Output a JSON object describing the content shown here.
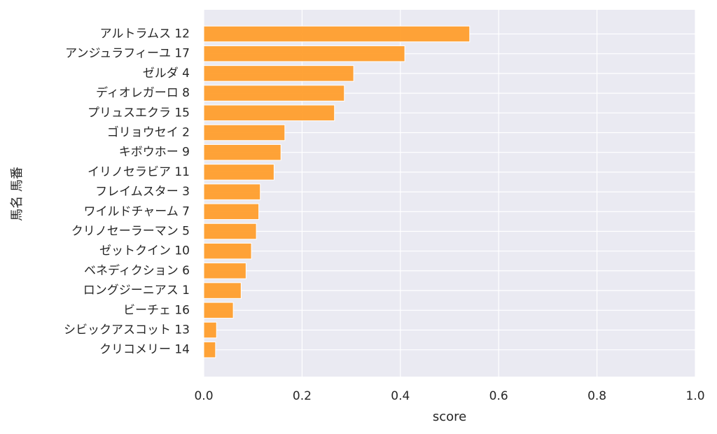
{
  "chart_data": {
    "type": "bar",
    "orientation": "horizontal",
    "xlabel": "score",
    "ylabel": "馬名 馬番",
    "xlim": [
      0.0,
      1.0
    ],
    "xticks": [
      "0.0",
      "0.2",
      "0.4",
      "0.6",
      "0.8",
      "1.0"
    ],
    "grid": true,
    "categories": [
      "アルトラムス 12",
      "アンジュラフィーユ 17",
      "ゼルダ 4",
      "ディオレガーロ 8",
      "プリュスエクラ 15",
      "ゴリョウセイ 2",
      "キボウホー 9",
      "イリノセラビア 11",
      "フレイムスター 3",
      "ワイルドチャーム 7",
      "クリノセーラーマン 5",
      "ゼットクイン 10",
      "ベネディクション 6",
      "ロングジーニアス 1",
      "ビーチェ 16",
      "シビックアスコット 13",
      "クリコメリー 14"
    ],
    "values": [
      0.541,
      0.409,
      0.305,
      0.286,
      0.266,
      0.165,
      0.157,
      0.143,
      0.115,
      0.112,
      0.107,
      0.097,
      0.086,
      0.076,
      0.06,
      0.026,
      0.024
    ],
    "colors": {
      "bar": "#FF9E2C",
      "bar_edge": "#ffffff",
      "plot_background": "#EAEAF2",
      "grid": "#ffffff",
      "text": "#262626"
    }
  }
}
